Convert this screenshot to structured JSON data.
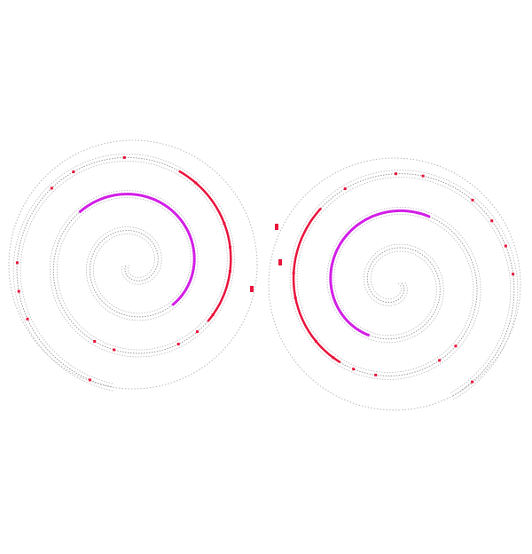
{
  "figure": {
    "type": "double-spiral-pixel-pattern",
    "spirals": [
      {
        "name": "left-spiral",
        "turns": 3.2,
        "direction": "counterclockwise"
      },
      {
        "name": "right-spiral",
        "turns": 3.2,
        "direction": "clockwise"
      }
    ],
    "colors": {
      "background": "#ffffff",
      "grid_line": "#b8b8b8",
      "grid_dot": "#9a9a9a",
      "accent_red": "#e8143c",
      "accent_magenta": "#d21ee6"
    }
  }
}
